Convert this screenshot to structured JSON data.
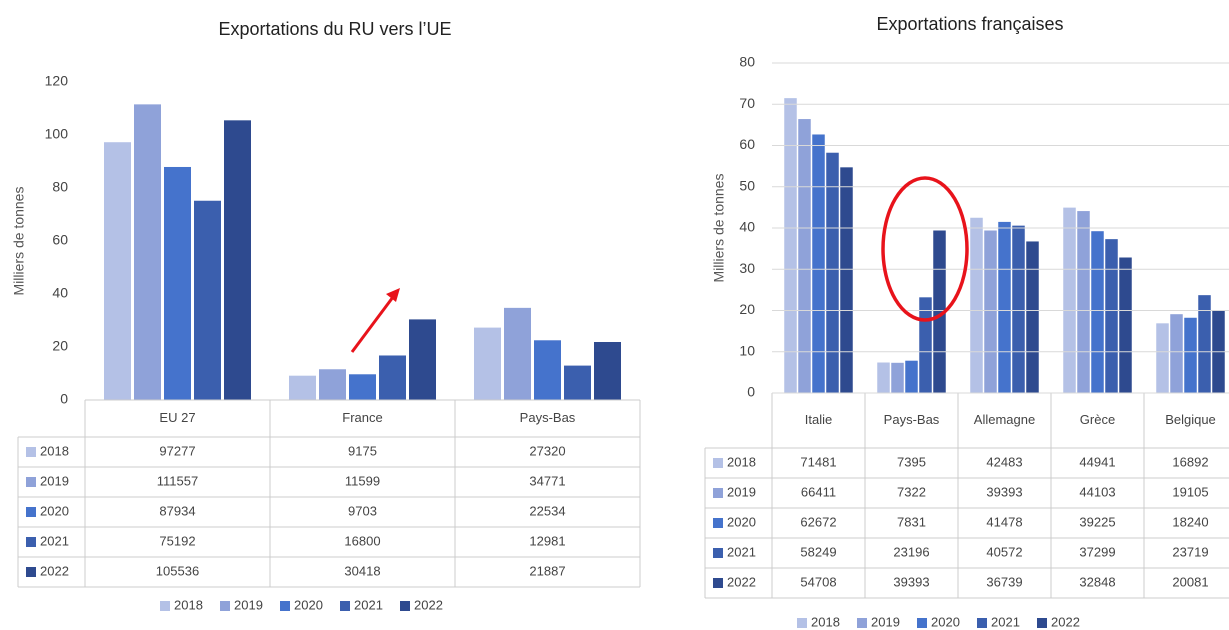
{
  "chart_data": [
    {
      "type": "bar",
      "title": "Exportations du RU vers l’UE",
      "y_label": "Milliers de tonnes",
      "categories": [
        "EU 27",
        "France",
        "Pays-Bas"
      ],
      "series": [
        {
          "name": "2018",
          "color": "#b4c1e6",
          "values": [
            97.277,
            9.175,
            27.32
          ],
          "value_labels": [
            "97277",
            "9175",
            "27320"
          ]
        },
        {
          "name": "2019",
          "color": "#8fa2d9",
          "values": [
            111.557,
            11.599,
            34.771
          ],
          "value_labels": [
            "111557",
            "11599",
            "34771"
          ]
        },
        {
          "name": "2020",
          "color": "#4573cc",
          "values": [
            87.934,
            9.703,
            22.534
          ],
          "value_labels": [
            "87934",
            "9703",
            "22534"
          ]
        },
        {
          "name": "2021",
          "color": "#3b5fae",
          "values": [
            75.192,
            16.8,
            12.981
          ],
          "value_labels": [
            "75192",
            "16800",
            "12981"
          ]
        },
        {
          "name": "2022",
          "color": "#2e4a8f",
          "values": [
            105.536,
            30.418,
            21.887
          ],
          "value_labels": [
            "105536",
            "30418",
            "21887"
          ]
        }
      ],
      "ylim": [
        0,
        120
      ],
      "yticks": [
        0,
        20,
        40,
        60,
        80,
        100,
        120
      ]
    },
    {
      "type": "bar",
      "title": "Exportations françaises",
      "y_label": "Milliers de tonnes",
      "categories": [
        "Italie",
        "Pays-Bas",
        "Allemagne",
        "Grèce",
        "Belgique"
      ],
      "series": [
        {
          "name": "2018",
          "color": "#b4c1e6",
          "values": [
            71.481,
            7.395,
            42.483,
            44.941,
            16.892
          ],
          "value_labels": [
            "71481",
            "7395",
            "42483",
            "44941",
            "16892"
          ]
        },
        {
          "name": "2019",
          "color": "#8fa2d9",
          "values": [
            66.411,
            7.322,
            39.393,
            44.103,
            19.105
          ],
          "value_labels": [
            "66411",
            "7322",
            "39393",
            "44103",
            "19105"
          ]
        },
        {
          "name": "2020",
          "color": "#4573cc",
          "values": [
            62.672,
            7.831,
            41.478,
            39.225,
            18.24
          ],
          "value_labels": [
            "62672",
            "7831",
            "41478",
            "39225",
            "18240"
          ]
        },
        {
          "name": "2021",
          "color": "#3b5fae",
          "values": [
            58.249,
            23.196,
            40.572,
            37.299,
            23.719
          ],
          "value_labels": [
            "58249",
            "23196",
            "40572",
            "37299",
            "23719"
          ]
        },
        {
          "name": "2022",
          "color": "#2e4a8f",
          "values": [
            54.708,
            39.393,
            36.739,
            32.848,
            20.081
          ],
          "value_labels": [
            "54708",
            "39393",
            "36739",
            "32848",
            "20081"
          ]
        }
      ],
      "ylim": [
        0,
        80
      ],
      "yticks": [
        0,
        10,
        20,
        30,
        40,
        50,
        60,
        70,
        80
      ]
    }
  ]
}
